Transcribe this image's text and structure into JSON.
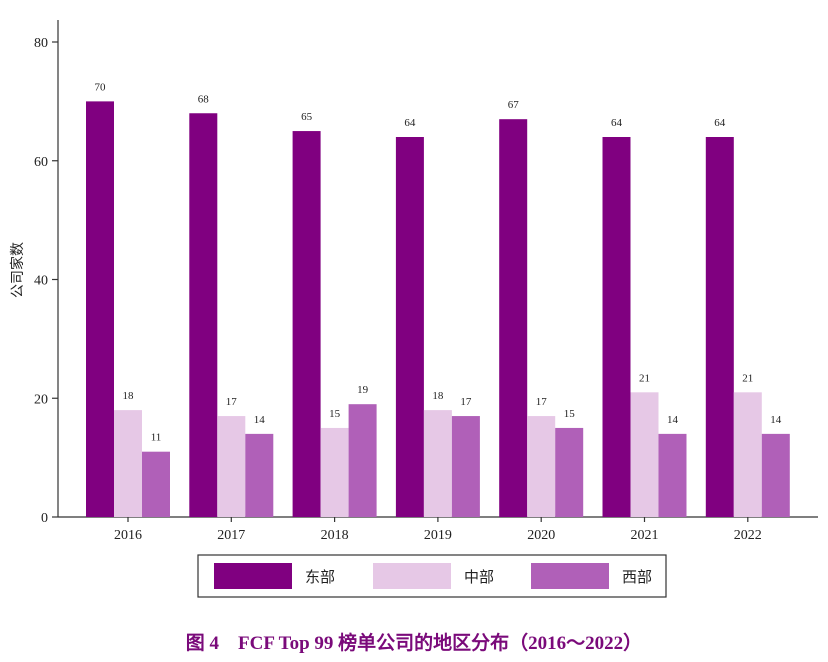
{
  "chart_data": {
    "type": "bar",
    "categories": [
      "2016",
      "2017",
      "2018",
      "2019",
      "2020",
      "2021",
      "2022"
    ],
    "series": [
      {
        "name": "东部",
        "values": [
          70,
          68,
          65,
          64,
          67,
          64,
          64
        ],
        "color": "#800080"
      },
      {
        "name": "中部",
        "values": [
          18,
          17,
          15,
          18,
          17,
          21,
          21
        ],
        "color": "#e6c8e6"
      },
      {
        "name": "西部",
        "values": [
          11,
          14,
          19,
          17,
          15,
          14,
          14
        ],
        "color": "#b060b8"
      }
    ],
    "ylabel": "公司家数",
    "ylim": [
      0,
      80
    ],
    "yticks": [
      0,
      20,
      40,
      60,
      80
    ],
    "grid": false,
    "legend": "bottom"
  },
  "caption": "图 4　FCF Top 99 榜单公司的地区分布（2016～2022）"
}
